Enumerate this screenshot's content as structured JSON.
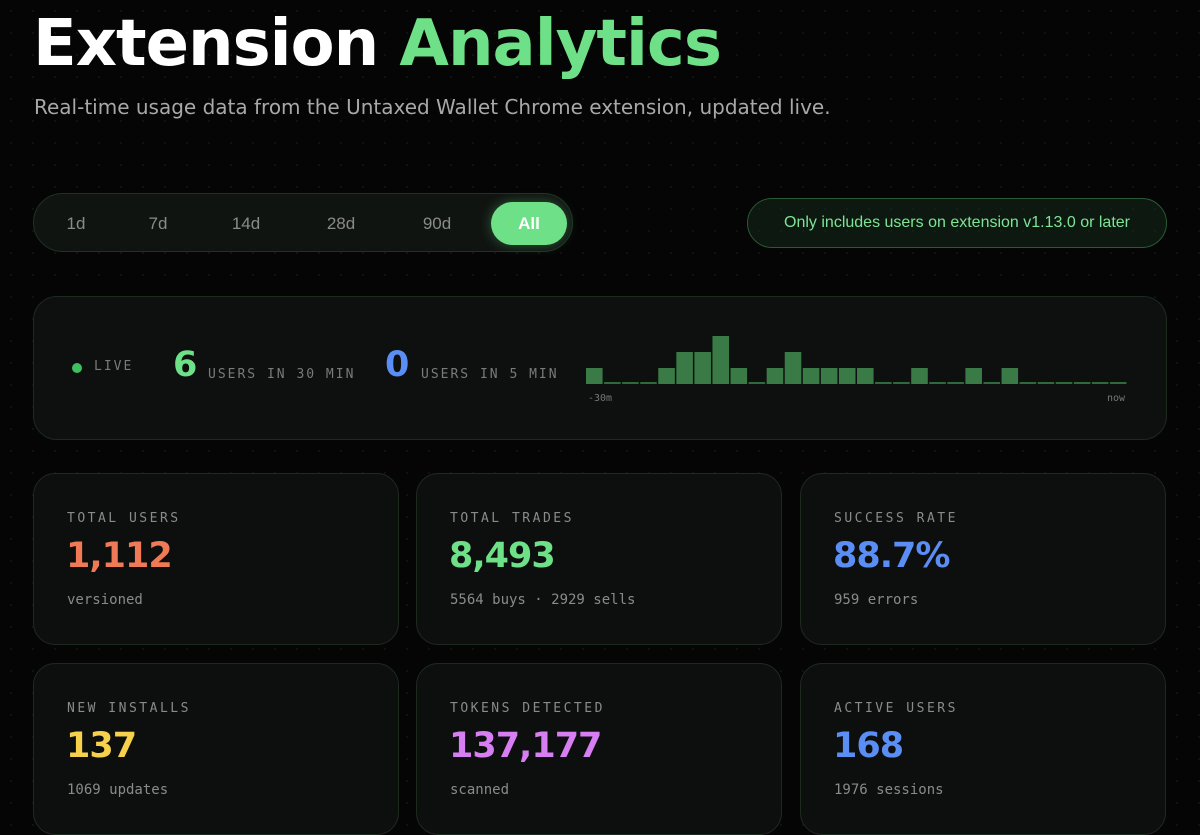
{
  "header": {
    "title_main": "Extension",
    "title_accent": "Analytics",
    "subtitle": "Real-time usage data from the Untaxed Wallet Chrome extension, updated live."
  },
  "range_selector": {
    "options": [
      "1d",
      "7d",
      "14d",
      "28d",
      "90d",
      "All"
    ],
    "selected": "All"
  },
  "version_note": "Only includes users on extension v1.13.0 or later",
  "live": {
    "label": "LIVE",
    "users_30": {
      "value": "6",
      "caption": "USERS IN 30 MIN"
    },
    "users_5": {
      "value": "0",
      "caption": "USERS IN 5 MIN"
    },
    "axis_start": "-30m",
    "axis_end": "now"
  },
  "chart_data": {
    "type": "bar",
    "title": "",
    "xlabel": "",
    "ylabel": "",
    "x_range_labels": [
      "-30m",
      "now"
    ],
    "values": [
      1,
      0,
      0,
      0,
      1,
      2,
      2,
      3,
      1,
      0,
      1,
      2,
      1,
      1,
      1,
      1,
      0,
      0,
      1,
      0,
      0,
      1,
      0,
      1,
      0,
      0,
      0,
      0,
      0,
      0
    ],
    "ylim": [
      0,
      3
    ],
    "color": "#3a7a46"
  },
  "stats": [
    {
      "label": "TOTAL USERS",
      "value": "1,112",
      "sub": "versioned",
      "color": "#f07a55"
    },
    {
      "label": "TOTAL TRADES",
      "value": "8,493",
      "sub": "5564 buys · 2929 sells",
      "color": "#6ee087"
    },
    {
      "label": "SUCCESS RATE",
      "value": "88.7%",
      "sub": "959 errors",
      "color": "#5b8ef5"
    },
    {
      "label": "NEW INSTALLS",
      "value": "137",
      "sub": "1069 updates",
      "color": "#f7d04c"
    },
    {
      "label": "TOKENS DETECTED",
      "value": "137,177",
      "sub": "scanned",
      "color": "#d67ef2"
    },
    {
      "label": "ACTIVE USERS",
      "value": "168",
      "sub": "1976 sessions",
      "color": "#5b8ef5"
    }
  ],
  "colors": {
    "accent": "#6ee087",
    "live_green": "#6ee087",
    "live_blue": "#5b8ef5"
  }
}
